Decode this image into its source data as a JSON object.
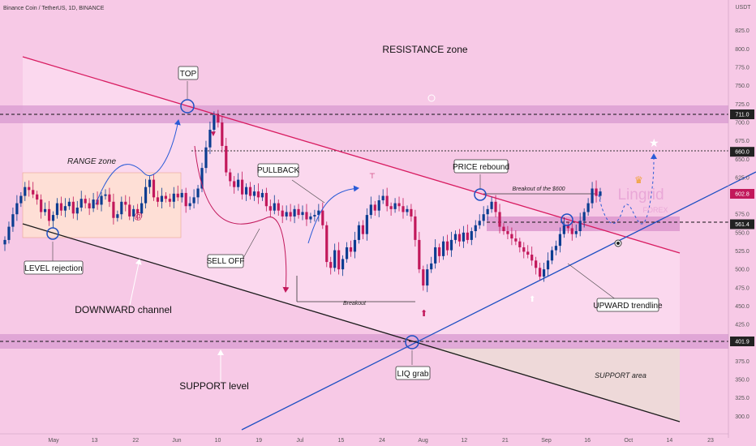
{
  "header": {
    "symbol_title": "Binance Coin / TetherUS, 1D, BINANCE",
    "currency": "USDT"
  },
  "colors": {
    "background": "#f7c9e6",
    "bull": "#0b3d91",
    "bear": "#c2185b",
    "resistance_line": "#d81b60",
    "support_trend": "#1e4fc2",
    "channel_bottom": "#1a1a1a",
    "zone_band": "#d685c7",
    "range_box": "#ffe0d4"
  },
  "chart_data": {
    "type": "candlestick",
    "title": "Binance Coin / TetherUS, 1D, BINANCE",
    "y_unit": "USDT",
    "ylim": [
      285,
      850
    ],
    "y_ticks": [
      825.0,
      800.0,
      775.0,
      750.0,
      725.0,
      700.0,
      675.0,
      650.0,
      625.0,
      575.0,
      550.0,
      525.0,
      500.0,
      475.0,
      450.0,
      425.0,
      375.0,
      350.0,
      325.0,
      300.0
    ],
    "x_ticks": [
      "May",
      "13",
      "22",
      "Jun",
      "10",
      "19",
      "Jul",
      "15",
      "24",
      "Aug",
      "12",
      "21",
      "Sep",
      "16",
      "Oct",
      "14",
      "23"
    ],
    "price_labels": [
      {
        "value": 711.0,
        "text": "711.0",
        "color": "#222222"
      },
      {
        "value": 660.0,
        "text": "660.0",
        "color": "#222222"
      },
      {
        "value": 602.8,
        "text": "602.8",
        "color": "#c2185b"
      },
      {
        "value": 561.4,
        "text": "561.4",
        "color": "#222222"
      },
      {
        "value": 401.9,
        "text": "401.9",
        "color": "#222222"
      }
    ],
    "ohlc_closes": [
      540,
      558,
      575,
      590,
      600,
      612,
      608,
      602,
      595,
      578,
      582,
      566,
      574,
      590,
      580,
      586,
      592,
      576,
      584,
      596,
      590,
      583,
      595,
      588,
      600,
      602,
      592,
      570,
      575,
      592,
      588,
      572,
      582,
      576,
      590,
      612,
      622,
      598,
      592,
      600,
      596,
      592,
      603,
      598,
      604,
      586,
      590,
      598,
      610,
      638,
      666,
      690,
      710,
      700,
      668,
      632,
      620,
      612,
      622,
      602,
      612,
      600,
      606,
      598,
      604,
      586,
      580,
      590,
      580,
      572,
      578,
      572,
      582,
      574,
      578,
      568,
      572,
      574,
      580,
      560,
      510,
      502,
      526,
      500,
      514,
      530,
      524,
      540,
      560,
      548,
      574,
      588,
      580,
      594,
      600,
      586,
      582,
      590,
      586,
      578,
      582,
      572,
      540,
      500,
      478,
      500,
      508,
      530,
      518,
      538,
      526,
      540,
      548,
      538,
      550,
      540,
      552,
      560,
      566,
      575,
      582,
      592,
      578,
      558,
      552,
      548,
      542,
      538,
      530,
      524,
      520,
      512,
      502,
      490,
      500,
      512,
      526,
      532,
      548,
      560,
      556,
      548,
      552,
      566,
      578,
      590,
      610,
      600,
      606
    ],
    "annotations": {
      "resistance_zone": "RESISTANCE zone",
      "range_zone": "RANGE zone",
      "top": "TOP",
      "pullback": "PULLBACK",
      "sell_off": "SELL OFF",
      "price_rebound": "PRICE rebound",
      "breakout_600": "Breakout of the $600",
      "breakout": "Breakout",
      "level_rejection": "LEVEL rejection",
      "downward_channel": "DOWNWARD channel",
      "liq_grab": "LIQ grab",
      "upward_trendline": "UPWARD trendline",
      "support_area": "SUPPORT area",
      "support_level": "SUPPORT level"
    },
    "watermark": {
      "brand": "Lingrid",
      "sub": "FOREX"
    },
    "grid": false,
    "legend": "none"
  }
}
